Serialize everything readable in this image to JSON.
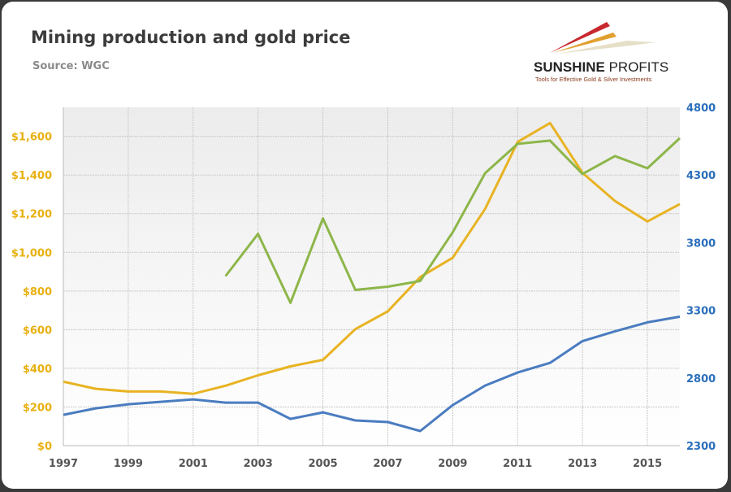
{
  "chart_data": {
    "type": "line",
    "title": "Mining production and gold price",
    "subtitle": "Source: WGC",
    "x": [
      1997,
      1998,
      1999,
      2000,
      2001,
      2002,
      2003,
      2004,
      2005,
      2006,
      2007,
      2008,
      2009,
      2010,
      2011,
      2012,
      2013,
      2014,
      2015,
      2016
    ],
    "x_tick_labels": [
      "1997",
      "1999",
      "2001",
      "2003",
      "2005",
      "2007",
      "2009",
      "2011",
      "2013",
      "2015"
    ],
    "y_left": {
      "range": [
        0,
        1750
      ],
      "ticks": [
        0,
        200,
        400,
        600,
        800,
        1000,
        1200,
        1400,
        1600
      ],
      "tick_labels": [
        "$0",
        "$200",
        "$400",
        "$600",
        "$800",
        "$1,000",
        "$1,200",
        "$1,400",
        "$1,600"
      ],
      "color": "#e8b010"
    },
    "y_right": {
      "range": [
        2300,
        4800
      ],
      "ticks": [
        2300,
        2800,
        3300,
        3800,
        4300,
        4800
      ],
      "tick_labels": [
        "2300",
        "2800",
        "3300",
        "3800",
        "4300",
        "4800"
      ],
      "color": "#2a6ebb"
    },
    "grid": true,
    "series": [
      {
        "axis": "left",
        "color": "#e8b323",
        "values": [
          331,
          294,
          280,
          280,
          268,
          310,
          364,
          410,
          444,
          603,
          695,
          872,
          972,
          1225,
          1571,
          1669,
          1411,
          1266,
          1160,
          1250
        ]
      },
      {
        "axis": "right",
        "color": "#4a7cc0",
        "values": [
          2528,
          2576,
          2606,
          2624,
          2642,
          2618,
          2618,
          2498,
          2546,
          2486,
          2474,
          2408,
          2600,
          2744,
          2840,
          2912,
          3073,
          3145,
          3211,
          3253
        ]
      },
      {
        "axis": "right",
        "color": "#8db64a",
        "values": [
          null,
          null,
          null,
          null,
          null,
          3553,
          3865,
          3355,
          3979,
          3451,
          3475,
          3517,
          3877,
          4314,
          4530,
          4554,
          4308,
          4440,
          4350,
          4572
        ]
      }
    ]
  },
  "logo": {
    "name": "SUNSHINE PROFITS",
    "tagline": "Tools for Effective Gold & Silver Investments"
  }
}
